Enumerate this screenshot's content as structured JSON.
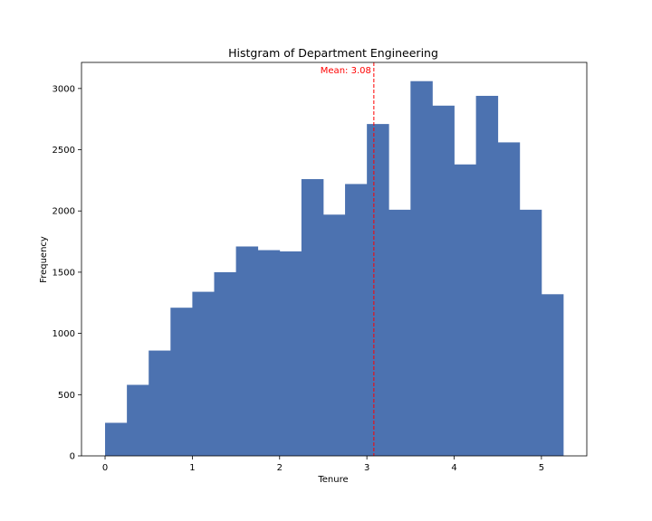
{
  "chart_data": {
    "type": "bar",
    "title": "Histgram of Department Engineering",
    "xlabel": "Tenure",
    "ylabel": "Frequency",
    "bar_color": "#4c72b0",
    "mean_color": "#ff0000",
    "bin_edges": [
      0.0,
      0.25,
      0.5,
      0.75,
      1.0,
      1.25,
      1.5,
      1.75,
      2.0,
      2.25,
      2.5,
      2.75,
      3.0,
      3.25,
      3.5,
      3.75,
      4.0,
      4.25,
      4.5,
      4.75,
      5.0,
      5.25
    ],
    "values": [
      270,
      580,
      860,
      1210,
      1340,
      1500,
      1710,
      1680,
      1670,
      2260,
      1970,
      2220,
      2710,
      2010,
      3060,
      2860,
      2380,
      2940,
      2560,
      2010,
      1320
    ],
    "xlim": [
      -0.27,
      5.52
    ],
    "ylim": [
      0,
      3213
    ],
    "x_ticks": [
      0,
      1,
      2,
      3,
      4,
      5
    ],
    "x_tick_labels": [
      "0",
      "1",
      "2",
      "3",
      "4",
      "5"
    ],
    "y_ticks": [
      0,
      500,
      1000,
      1500,
      2000,
      2500,
      3000
    ],
    "y_tick_labels": [
      "0",
      "500",
      "1000",
      "1500",
      "2000",
      "2500",
      "3000"
    ],
    "mean": 3.08,
    "mean_label": "Mean: 3.08",
    "grid": false,
    "legend": "none"
  }
}
